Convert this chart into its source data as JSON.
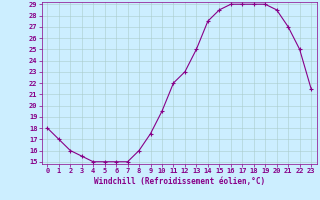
{
  "x": [
    0,
    1,
    2,
    3,
    4,
    5,
    6,
    7,
    8,
    9,
    10,
    11,
    12,
    13,
    14,
    15,
    16,
    17,
    18,
    19,
    20,
    21,
    22,
    23
  ],
  "y": [
    18,
    17,
    16,
    15.5,
    15,
    15,
    15,
    15,
    16,
    17.5,
    19.5,
    22,
    23,
    25,
    27.5,
    28.5,
    29,
    29,
    29,
    29,
    28.5,
    27,
    25,
    21.5
  ],
  "line_color": "#880088",
  "marker": "+",
  "marker_size": 3,
  "ylim": [
    15,
    29
  ],
  "xlim": [
    -0.5,
    23.5
  ],
  "yticks": [
    15,
    16,
    17,
    18,
    19,
    20,
    21,
    22,
    23,
    24,
    25,
    26,
    27,
    28,
    29
  ],
  "xticks": [
    0,
    1,
    2,
    3,
    4,
    5,
    6,
    7,
    8,
    9,
    10,
    11,
    12,
    13,
    14,
    15,
    16,
    17,
    18,
    19,
    20,
    21,
    22,
    23
  ],
  "bg_color": "#cceeff",
  "grid_color": "#aacccc",
  "tick_color": "#880088",
  "label_color": "#880088",
  "xlabel": "Windchill (Refroidissement éolien,°C)",
  "tick_fontsize": 5.0,
  "xlabel_fontsize": 5.5
}
